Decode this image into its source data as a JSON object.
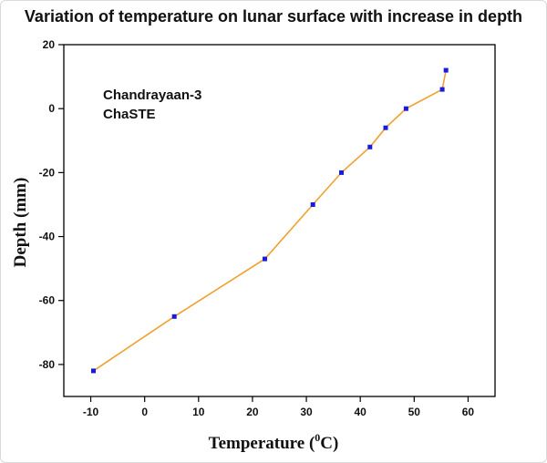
{
  "chart_data": {
    "type": "line",
    "title": "Variation of temperature on lunar surface with increase in depth",
    "xlabel": "Temperature (",
    "xlabel_sup": "0",
    "xlabel_tail": "C)",
    "ylabel": "Depth (mm)",
    "annotations": [
      "Chandrayaan-3",
      "ChaSTE"
    ],
    "xlim": [
      -15,
      65
    ],
    "ylim": [
      -90,
      20
    ],
    "xticks": [
      -10,
      0,
      10,
      20,
      30,
      40,
      50,
      60
    ],
    "yticks": [
      20,
      0,
      -20,
      -40,
      -60,
      -80
    ],
    "grid": false,
    "colors": {
      "line": "#f0a030",
      "marker": "#1a1adf"
    },
    "series": [
      {
        "x": [
          -9.5,
          5.5,
          22.3,
          31.2,
          36.5,
          41.8,
          44.7,
          48.5,
          55.2,
          55.9
        ],
        "y": [
          -82,
          -65,
          -47,
          -30,
          -20,
          -12,
          -6,
          0,
          6,
          12
        ]
      }
    ]
  }
}
